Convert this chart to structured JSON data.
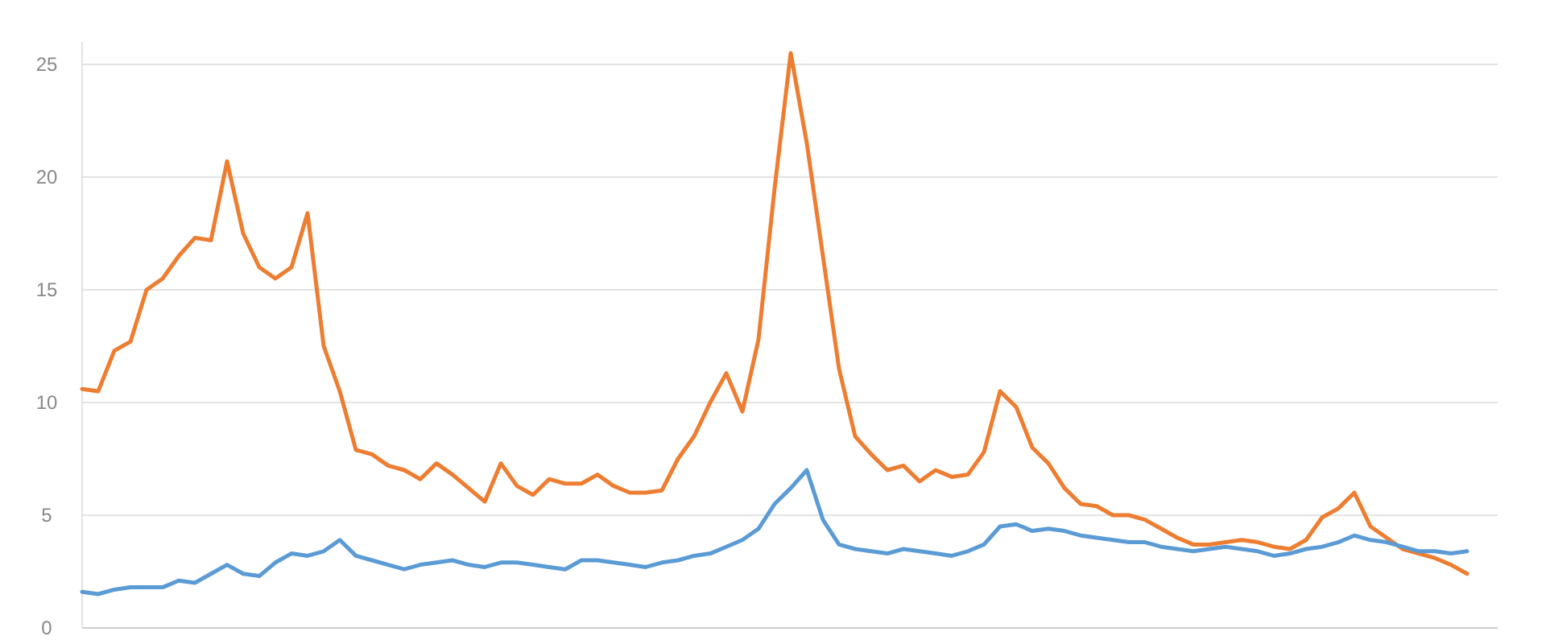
{
  "chart_data": {
    "type": "line",
    "categories": [
      null,
      null,
      null,
      null,
      null,
      null,
      null,
      null,
      null,
      null,
      null,
      null,
      null,
      null,
      null,
      null,
      null,
      null,
      null,
      null,
      null,
      null,
      null,
      null,
      null,
      null,
      null,
      null,
      null,
      null,
      null,
      null,
      null,
      null,
      null,
      null,
      null,
      null,
      null,
      null,
      null,
      null,
      null,
      null,
      null,
      null,
      null,
      null,
      null,
      null,
      null,
      null,
      null,
      null,
      null,
      null,
      null,
      null,
      null,
      null,
      null,
      null,
      null,
      null,
      null,
      null,
      null,
      null,
      null,
      null,
      null,
      null,
      null,
      null,
      null,
      null,
      null,
      null,
      null,
      null,
      null,
      null,
      null,
      null,
      null,
      null,
      null
    ],
    "ylim": [
      0,
      26
    ],
    "yticks": [
      0,
      5,
      10,
      15,
      20,
      25
    ],
    "grid": "y",
    "marker": "none",
    "line_style": "solid",
    "series": [
      {
        "color": "#ed7d31",
        "values": [
          10.6,
          10.5,
          12.3,
          12.7,
          15.0,
          15.5,
          16.5,
          17.3,
          17.2,
          20.7,
          17.5,
          16.0,
          15.5,
          16.0,
          18.4,
          12.5,
          10.5,
          7.9,
          7.7,
          7.2,
          7.0,
          6.6,
          7.3,
          6.8,
          6.2,
          5.6,
          7.3,
          6.3,
          5.9,
          6.6,
          6.4,
          6.4,
          6.8,
          6.3,
          6.0,
          6.0,
          6.1,
          7.5,
          8.5,
          10.0,
          11.3,
          9.6,
          12.8,
          19.5,
          25.5,
          21.5,
          16.5,
          11.5,
          8.5,
          7.7,
          7.0,
          7.2,
          6.5,
          7.0,
          6.7,
          6.8,
          7.8,
          10.5,
          9.8,
          8.0,
          7.3,
          6.2,
          5.5,
          5.4,
          5.0,
          5.0,
          4.8,
          4.4,
          4.0,
          3.7,
          3.7,
          3.8,
          3.9,
          3.8,
          3.6,
          3.5,
          3.9,
          4.9,
          5.3,
          6.0,
          4.5,
          4.0,
          3.5,
          3.3,
          3.1,
          2.8,
          2.4
        ]
      },
      {
        "color": "#5b9bd5",
        "values": [
          1.6,
          1.5,
          1.7,
          1.8,
          1.8,
          1.8,
          2.1,
          2.0,
          2.4,
          2.8,
          2.4,
          2.3,
          2.9,
          3.3,
          3.2,
          3.4,
          3.9,
          3.2,
          3.0,
          2.8,
          2.6,
          2.8,
          2.9,
          3.0,
          2.8,
          2.7,
          2.9,
          2.9,
          2.8,
          2.7,
          2.6,
          3.0,
          3.0,
          2.9,
          2.8,
          2.7,
          2.9,
          3.0,
          3.2,
          3.3,
          3.6,
          3.9,
          4.4,
          5.5,
          6.2,
          7.0,
          4.8,
          3.7,
          3.5,
          3.4,
          3.3,
          3.5,
          3.4,
          3.3,
          3.2,
          3.4,
          3.7,
          4.5,
          4.6,
          4.3,
          4.4,
          4.3,
          4.1,
          4.0,
          3.9,
          3.8,
          3.8,
          3.6,
          3.5,
          3.4,
          3.5,
          3.6,
          3.5,
          3.4,
          3.2,
          3.3,
          3.5,
          3.6,
          3.8,
          4.1,
          3.9,
          3.8,
          3.6,
          3.4,
          3.4,
          3.3,
          3.4
        ]
      }
    ]
  }
}
